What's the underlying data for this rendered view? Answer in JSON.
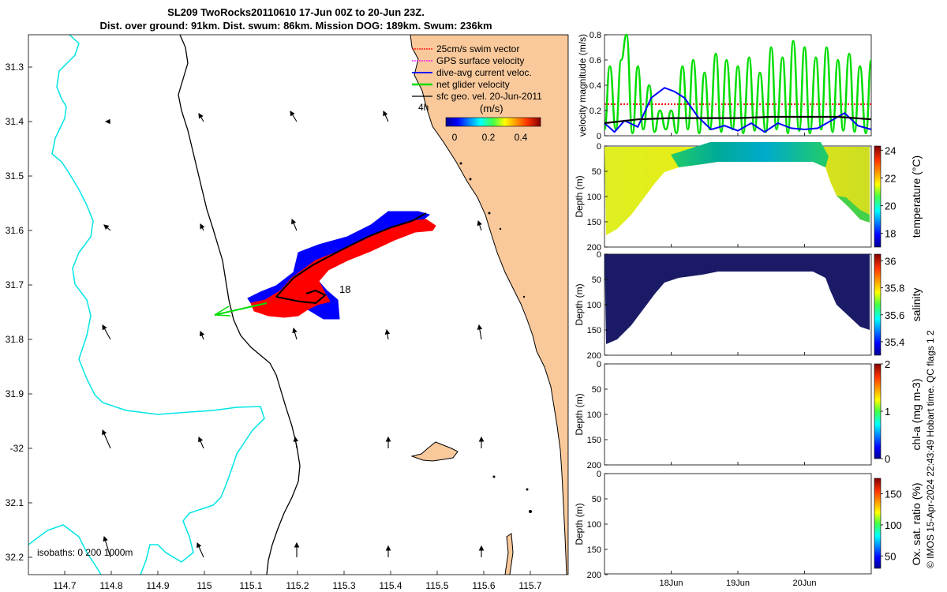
{
  "header": {
    "title_line1": "SL209 TwoRocks20110610 17-Jun 00Z to 20-Jun 23Z.",
    "title_line2": "Dist. over ground: 91km. Dist. swum: 86km. Mission DOG: 189km. Swum: 236km"
  },
  "colors": {
    "land": "#f9c99b",
    "isobath_shallow": "#000000",
    "isobath_deep": "#00e5e5",
    "swim_vector": "#ff0000",
    "gps_velocity": "#ff00ff",
    "dive_avg_current": "#0000ff",
    "net_glider_velocity": "#00dd00",
    "geo_vel": "#000000",
    "profile_dark": "#1a1a66"
  },
  "map": {
    "lat_ticks": [
      "31.3",
      "31.4",
      "31.5",
      "31.6",
      "31.7",
      "31.8",
      "31.9",
      "-32",
      "32.1",
      "32.2"
    ],
    "lon_ticks": [
      "114.7",
      "114.8",
      "114.9",
      "115",
      "115.1",
      "115.2",
      "115.3",
      "115.4",
      "115.5",
      "115.6",
      "115.7"
    ],
    "legend": {
      "items": [
        {
          "label": "25cm/s swim vector",
          "color_key": "swim_vector"
        },
        {
          "label": "GPS surface velocity",
          "color_key": "gps_velocity"
        },
        {
          "label": "dive-avg current veloc.",
          "color_key": "dive_avg_current"
        },
        {
          "label": "net glider velocity",
          "color_key": "net_glider_velocity"
        },
        {
          "label": "sfc geo. vel. 20-Jun-2011",
          "color_key": "geo_vel"
        }
      ],
      "scale_label": "4h",
      "colorbar_title": "(m/s)",
      "colorbar_ticks": [
        "0",
        "0.2",
        "0.4"
      ]
    },
    "isobath_label": "isobaths: 0   200  1000m",
    "track_label": "18"
  },
  "chart_data": [
    {
      "type": "line",
      "title": "",
      "ylabel": "velocity magnitude (m/s)",
      "xlabel": "",
      "ylim": [
        0,
        0.8
      ],
      "y_ticks": [
        "0",
        "0.2",
        "0.4",
        "0.6",
        "0.8"
      ],
      "x_range_days": [
        17.0,
        21.0
      ],
      "x_ticks": [
        {
          "label": "18Jun",
          "x": 18.0
        },
        {
          "label": "19Jun",
          "x": 19.0
        },
        {
          "label": "20Jun",
          "x": 20.0
        }
      ],
      "series": [
        {
          "name": "swim vector",
          "color_key": "swim_vector",
          "style": "dotted",
          "x": [
            17.0,
            17.5,
            18.0,
            18.5,
            19.0,
            19.5,
            20.0,
            20.5,
            21.0
          ],
          "values": [
            0.25,
            0.25,
            0.25,
            0.25,
            0.25,
            0.25,
            0.25,
            0.25,
            0.25
          ]
        },
        {
          "name": "net glider velocity",
          "color_key": "net_glider_velocity",
          "style": "solid",
          "x": [
            17.0,
            17.08,
            17.17,
            17.25,
            17.33,
            17.42,
            17.5,
            17.58,
            17.67,
            17.75,
            17.83,
            17.92,
            18.0,
            18.08,
            18.17,
            18.25,
            18.33,
            18.42,
            18.5,
            18.58,
            18.67,
            18.75,
            18.83,
            18.92,
            19.0,
            19.08,
            19.17,
            19.25,
            19.33,
            19.42,
            19.5,
            19.58,
            19.67,
            19.75,
            19.83,
            19.92,
            20.0,
            20.08,
            20.17,
            20.25,
            20.33,
            20.42,
            20.5,
            20.58,
            20.67,
            20.75,
            20.83,
            20.92,
            21.0
          ],
          "values": [
            0.05,
            0.55,
            0.05,
            0.6,
            0.8,
            0.02,
            0.55,
            0.05,
            0.4,
            0.03,
            0.2,
            0.05,
            0.2,
            0.02,
            0.55,
            0.05,
            0.6,
            0.02,
            0.5,
            0.05,
            0.65,
            0.03,
            0.6,
            0.05,
            0.55,
            0.02,
            0.62,
            0.04,
            0.5,
            0.03,
            0.7,
            0.05,
            0.62,
            0.02,
            0.75,
            0.04,
            0.7,
            0.02,
            0.62,
            0.05,
            0.7,
            0.03,
            0.6,
            0.04,
            0.65,
            0.03,
            0.55,
            0.02,
            0.6
          ]
        },
        {
          "name": "dive-avg current",
          "color_key": "dive_avg_current",
          "style": "solid",
          "x": [
            17.0,
            17.15,
            17.3,
            17.5,
            17.7,
            17.9,
            18.05,
            18.2,
            18.4,
            18.6,
            18.8,
            19.0,
            19.2,
            19.4,
            19.6,
            19.8,
            20.0,
            20.2,
            20.4,
            20.6,
            20.8,
            21.0
          ],
          "values": [
            0.1,
            0.03,
            0.12,
            0.07,
            0.3,
            0.38,
            0.35,
            0.3,
            0.15,
            0.05,
            0.08,
            0.04,
            0.1,
            0.03,
            0.1,
            0.06,
            0.05,
            0.06,
            0.12,
            0.18,
            0.08,
            0.05
          ]
        },
        {
          "name": "geo velocity",
          "color_key": "geo_vel",
          "style": "solid",
          "x": [
            17.0,
            17.5,
            18.0,
            18.5,
            19.0,
            19.5,
            20.0,
            20.5,
            21.0
          ],
          "values": [
            0.1,
            0.13,
            0.14,
            0.14,
            0.14,
            0.15,
            0.15,
            0.15,
            0.13
          ]
        }
      ]
    },
    {
      "type": "heatmap",
      "ylabel": "Depth (m)",
      "ylim": [
        200,
        0
      ],
      "y_ticks": [
        "0",
        "50",
        "100",
        "150",
        "200"
      ],
      "colorbar_label": "temperature (°C)",
      "colorbar_ticks": [
        "18",
        "20",
        "22",
        "24"
      ],
      "colorbar_range": [
        17,
        24.3
      ]
    },
    {
      "type": "heatmap",
      "ylabel": "Depth (m)",
      "ylim": [
        200,
        0
      ],
      "y_ticks": [
        "0",
        "50",
        "100",
        "150",
        "200"
      ],
      "colorbar_label": "salinity",
      "colorbar_ticks": [
        "35.4",
        "35.6",
        "35.8",
        "36"
      ],
      "colorbar_range": [
        35.3,
        36.05
      ]
    },
    {
      "type": "heatmap",
      "ylabel": "Depth (m)",
      "ylim": [
        200,
        0
      ],
      "y_ticks": [
        "0",
        "50",
        "100",
        "150",
        "200"
      ],
      "colorbar_label": "chl-a (mg m-3)",
      "colorbar_ticks": [
        "0",
        "1",
        "2"
      ],
      "colorbar_range": [
        0,
        2
      ]
    },
    {
      "type": "heatmap",
      "ylabel": "Depth (m)",
      "ylim": [
        200,
        0
      ],
      "y_ticks": [
        "0",
        "50",
        "100",
        "150",
        "200"
      ],
      "colorbar_label": "Ox. sat. ratio (%)",
      "colorbar_ticks": [
        "50",
        "100",
        "150"
      ],
      "colorbar_range": [
        30,
        175
      ]
    }
  ],
  "footer": {
    "credit": "© IMOS 15-Apr-2024 22:43:49 Hobart time. QC flags 1  2"
  }
}
